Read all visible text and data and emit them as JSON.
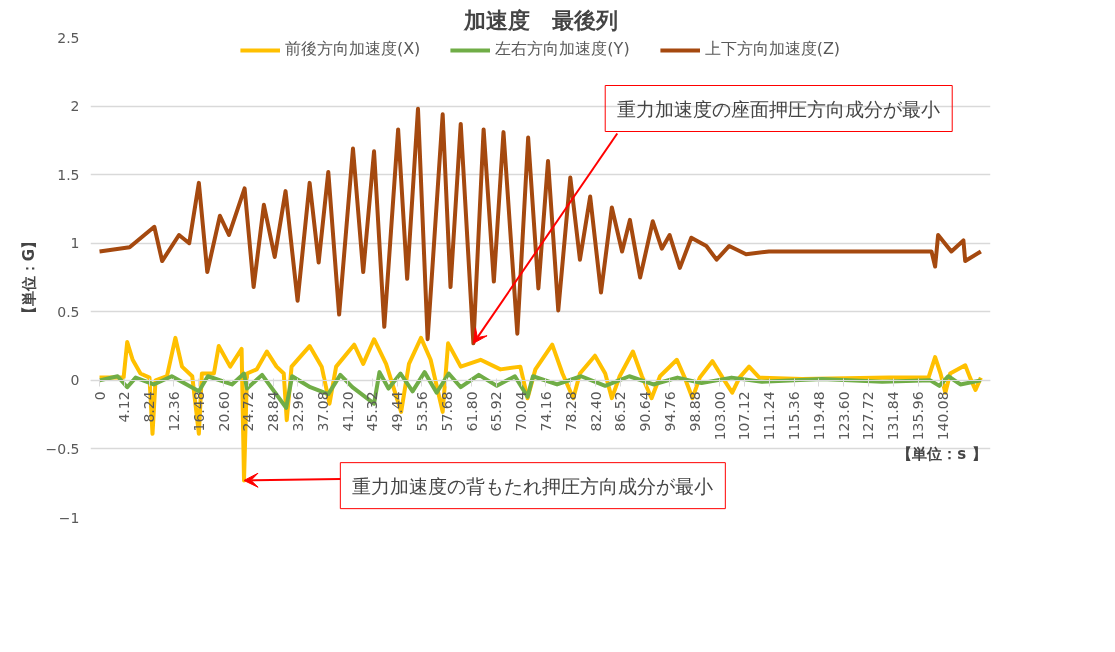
{
  "chart_data": {
    "type": "line",
    "title": "加速度　最後列",
    "xlabel": "【単位：s 】",
    "ylabel": "【単位：G】",
    "xlim": [
      -1.5,
      148
    ],
    "ylim": [
      -1,
      2.5
    ],
    "yticks": [
      -1,
      -0.5,
      0,
      0.5,
      1,
      1.5,
      2,
      2.5
    ],
    "xticks": [
      0,
      4.12,
      8.24,
      12.36,
      16.48,
      {
        "value": 20.6,
        "label": "20.60"
      },
      24.72,
      28.84,
      32.96,
      37.08,
      {
        "value": 41.2,
        "label": "41.20"
      },
      45.32,
      49.44,
      53.56,
      57.68,
      {
        "value": 61.8,
        "label": "61.80"
      },
      65.92,
      70.04,
      74.16,
      78.28,
      {
        "value": 82.4,
        "label": "82.40"
      },
      86.52,
      90.64,
      94.76,
      98.88,
      {
        "value": 103,
        "label": "103.00"
      },
      107.12,
      111.24,
      115.36,
      119.48,
      {
        "value": 123.6,
        "label": "123.60"
      },
      127.72,
      131.84,
      135.96,
      140.08
    ],
    "grid": "y",
    "legend": "top",
    "line_style": "solid",
    "marker": "none",
    "annotations": [
      {
        "text": "重力加速度の座面押圧方向成分が最小",
        "x": 62.1,
        "y": 0.27
      },
      {
        "text": "重力加速度の背もたれ押圧方向成分が最小",
        "x": 24.0,
        "y": -0.73
      }
    ],
    "series": [
      {
        "name": "前後方向加速度(X)",
        "color": "#ffc000",
        "x": [
          0,
          4.0,
          4.6,
          5.5,
          6.8,
          8.3,
          8.8,
          9.3,
          11.2,
          12.6,
          13.7,
          15.4,
          16.5,
          17.0,
          19.0,
          19.8,
          21.7,
          23.6,
          24.0,
          24.5,
          26.1,
          27.8,
          29.4,
          30.6,
          31.1,
          31.9,
          34.9,
          36.9,
          38.2,
          39.3,
          42.3,
          43.8,
          45.6,
          47.6,
          50.1,
          51.4,
          53.4,
          55.0,
          57.0,
          57.9,
          60.0,
          63.3,
          66.6,
          69.9,
          71.1,
          72.4,
          75.2,
          76.9,
          78.7,
          79.8,
          82.3,
          84.0,
          85.1,
          86.4,
          88.6,
          90.1,
          91.7,
          93.1,
          95.9,
          97.2,
          98.5,
          99.7,
          101.8,
          103.5,
          105.1,
          106.3,
          107.9,
          109.6,
          116.7,
          131.1,
          137.7,
          138.8,
          139.7,
          140.5,
          141.3,
          143.8,
          144.6,
          145.5,
          146.4
        ],
        "values": [
          0.02,
          0.02,
          0.28,
          0.15,
          0.05,
          0.02,
          -0.39,
          0.0,
          0.03,
          0.31,
          0.1,
          0.03,
          -0.39,
          0.05,
          0.05,
          0.25,
          0.1,
          0.23,
          -0.73,
          0.05,
          0.08,
          0.21,
          0.1,
          0.05,
          -0.29,
          0.1,
          0.25,
          0.1,
          -0.17,
          0.1,
          0.26,
          0.12,
          0.3,
          0.12,
          -0.23,
          0.12,
          0.31,
          0.15,
          -0.23,
          0.27,
          0.1,
          0.15,
          0.08,
          0.1,
          -0.13,
          0.08,
          0.26,
          0.05,
          -0.13,
          0.05,
          0.18,
          0.05,
          -0.13,
          0.03,
          0.21,
          0.03,
          -0.13,
          0.03,
          0.15,
          0.02,
          -0.13,
          0.02,
          0.14,
          0.02,
          -0.09,
          0.02,
          0.1,
          0.02,
          0.01,
          0.02,
          0.02,
          0.17,
          0.05,
          -0.09,
          0.05,
          0.11,
          0.02,
          -0.07,
          0.02
        ]
      },
      {
        "name": "左右方向加速度(Y)",
        "color": "#70ad47",
        "x": [
          0,
          3,
          4.6,
          6,
          9,
          12,
          16.5,
          18,
          22,
          24,
          24.5,
          27,
          31,
          32,
          35,
          38,
          40,
          42,
          45.6,
          46.5,
          48,
          50,
          52,
          54,
          56,
          58,
          60,
          63,
          66,
          69,
          71.1,
          72,
          76,
          80,
          84,
          88,
          92,
          96,
          100,
          105,
          110,
          120,
          130,
          138,
          139.5,
          141,
          143,
          146.4
        ],
        "values": [
          0.0,
          0.03,
          -0.05,
          0.02,
          -0.03,
          0.03,
          -0.08,
          0.03,
          -0.03,
          0.05,
          -0.06,
          0.04,
          -0.2,
          0.03,
          -0.05,
          -0.1,
          0.04,
          -0.05,
          -0.17,
          0.06,
          -0.06,
          0.05,
          -0.08,
          0.06,
          -0.09,
          0.05,
          -0.05,
          0.04,
          -0.04,
          0.03,
          -0.12,
          0.03,
          -0.03,
          0.03,
          -0.04,
          0.03,
          -0.03,
          0.02,
          -0.02,
          0.02,
          -0.01,
          0.01,
          -0.01,
          0.0,
          -0.04,
          0.03,
          -0.03,
          0.0
        ]
      },
      {
        "name": "上下方向加速度(Z)",
        "color": "#a5490f",
        "x": [
          0,
          5.0,
          9.1,
          10.4,
          13.2,
          14.9,
          16.5,
          17.9,
          20.0,
          21.5,
          24.1,
          25.6,
          27.3,
          29.1,
          30.9,
          32.9,
          34.9,
          36.4,
          38.0,
          39.8,
          42.1,
          43.8,
          45.6,
          47.3,
          49.6,
          51.1,
          52.9,
          54.5,
          57.0,
          58.3,
          60.0,
          62.1,
          63.8,
          65.5,
          67.1,
          69.4,
          71.2,
          72.9,
          74.5,
          76.2,
          78.2,
          79.8,
          81.5,
          83.3,
          85.1,
          86.8,
          88.1,
          89.8,
          91.9,
          93.4,
          94.7,
          96.4,
          98.3,
          100.8,
          102.5,
          104.6,
          107.4,
          111.2,
          124.5,
          138.2,
          138.8,
          139.3,
          141.5,
          143.5,
          143.8,
          146.4
        ],
        "values": [
          0.94,
          0.97,
          1.12,
          0.87,
          1.06,
          1.0,
          1.44,
          0.79,
          1.2,
          1.06,
          1.4,
          0.68,
          1.28,
          0.9,
          1.38,
          0.58,
          1.44,
          0.86,
          1.52,
          0.48,
          1.69,
          0.79,
          1.67,
          0.39,
          1.83,
          0.74,
          1.98,
          0.3,
          1.94,
          0.68,
          1.87,
          0.27,
          1.83,
          0.72,
          1.81,
          0.34,
          1.77,
          0.67,
          1.6,
          0.51,
          1.48,
          0.88,
          1.34,
          0.64,
          1.26,
          0.94,
          1.17,
          0.75,
          1.16,
          0.96,
          1.06,
          0.82,
          1.04,
          0.98,
          0.88,
          0.98,
          0.92,
          0.94,
          0.94,
          0.94,
          0.83,
          1.06,
          0.94,
          1.02,
          0.87,
          0.94
        ]
      }
    ]
  }
}
